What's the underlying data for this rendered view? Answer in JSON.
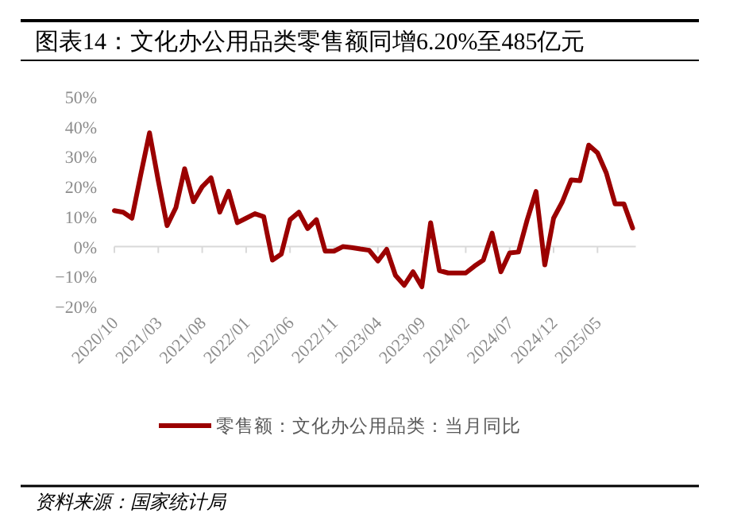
{
  "chart_data": {
    "type": "line",
    "title": "图表14：文化办公用品类零售额同增6.20%至485亿元",
    "categories": [
      "2020/10",
      null,
      null,
      null,
      null,
      "2021/03",
      null,
      null,
      null,
      null,
      "2021/08",
      null,
      null,
      null,
      null,
      "2022/01",
      null,
      null,
      null,
      null,
      "2022/06",
      null,
      null,
      null,
      null,
      "2022/11",
      null,
      null,
      null,
      null,
      "2023/04",
      null,
      null,
      null,
      null,
      "2023/09",
      null,
      null,
      null,
      null,
      "2024/02",
      null,
      null,
      null,
      null,
      "2024/07",
      null,
      null,
      null,
      null,
      "2024/12",
      null,
      null,
      null,
      null,
      "2025/05",
      null,
      null,
      null,
      null
    ],
    "series": [
      {
        "name": "零售额：文化办公用品类：当月同比",
        "color": "#9b0000",
        "values": [
          12,
          11.5,
          9.5,
          24,
          38,
          22,
          7,
          13,
          26,
          15,
          20,
          23,
          11.5,
          18.5,
          8,
          9.5,
          11,
          10,
          -4.5,
          -2.5,
          9,
          11.5,
          6,
          9,
          -1.5,
          -1.5,
          0,
          -0.3,
          -0.8,
          -1.2,
          -4.8,
          -0.9,
          -9.6,
          -12.9,
          -8.4,
          -13.4,
          8,
          -8,
          -8.8,
          -8.8,
          -8.8,
          -6.5,
          -4.5,
          4.5,
          -8.4,
          -2.1,
          -1.8,
          9,
          18.4,
          -6.1,
          9.5,
          15,
          22.3,
          22,
          33.9,
          31.3,
          24.6,
          14.3,
          14.3,
          6.2
        ]
      }
    ],
    "ylim": [
      -20,
      50
    ],
    "yticks": [
      {
        "value": -20,
        "label": "−20%"
      },
      {
        "value": -10,
        "label": "−10%"
      },
      {
        "value": 0,
        "label": "0%"
      },
      {
        "value": 10,
        "label": "10%"
      },
      {
        "value": 20,
        "label": "20%"
      },
      {
        "value": 30,
        "label": "30%"
      },
      {
        "value": 40,
        "label": "40%"
      },
      {
        "value": 50,
        "label": "50%"
      }
    ],
    "legend": "bottom",
    "marker": "none",
    "line_style": "solid",
    "annotations": [
      "资料来源：国家统计局"
    ]
  }
}
